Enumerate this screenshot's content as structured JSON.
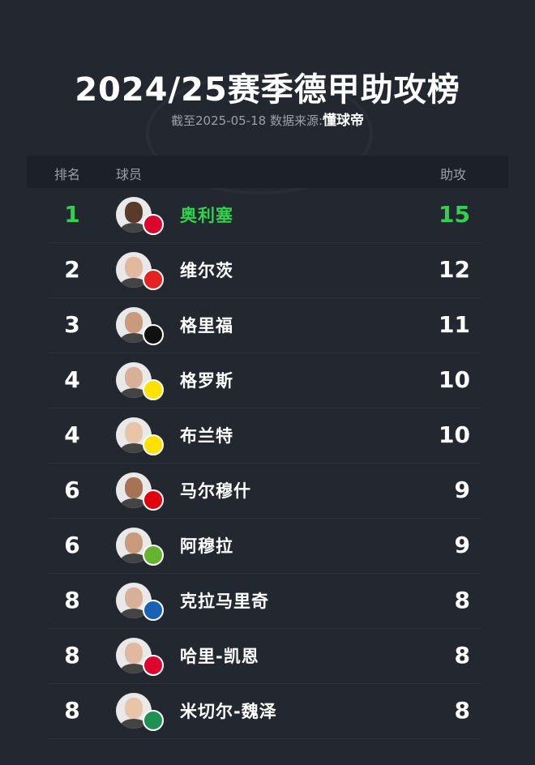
{
  "title": "2024/25赛季德甲助攻榜",
  "subtitle": {
    "text": "截至2025-05-18 数据来源:",
    "brand": "懂球帝"
  },
  "columns": {
    "rank": "排名",
    "player": "球员",
    "assists": "助攻"
  },
  "highlight_color": "#2fd24a",
  "rows": [
    {
      "rank": "1",
      "name": "奥利塞",
      "assists": "15",
      "team_color": "#dc052d",
      "skin": "#5a3a2a"
    },
    {
      "rank": "2",
      "name": "维尔茨",
      "assists": "12",
      "team_color": "#e32221",
      "skin": "#e0b9a0"
    },
    {
      "rank": "3",
      "name": "格里福",
      "assists": "11",
      "team_color": "#111111",
      "skin": "#c99a7e"
    },
    {
      "rank": "4",
      "name": "格罗斯",
      "assists": "10",
      "team_color": "#fde100",
      "skin": "#d8b09a"
    },
    {
      "rank": "4",
      "name": "布兰特",
      "assists": "10",
      "team_color": "#fde100",
      "skin": "#e8c4a8"
    },
    {
      "rank": "6",
      "name": "马尔穆什",
      "assists": "9",
      "team_color": "#e1000f",
      "skin": "#a67454"
    },
    {
      "rank": "6",
      "name": "阿穆拉",
      "assists": "9",
      "team_color": "#65b32e",
      "skin": "#c99a7e"
    },
    {
      "rank": "8",
      "name": "克拉马里奇",
      "assists": "8",
      "team_color": "#1961b5",
      "skin": "#d8b09a"
    },
    {
      "rank": "8",
      "name": "哈里-凯恩",
      "assists": "8",
      "team_color": "#dc052d",
      "skin": "#e0b9a0"
    },
    {
      "rank": "8",
      "name": "米切尔-魏泽",
      "assists": "8",
      "team_color": "#1d9053",
      "skin": "#e8c4a8"
    }
  ]
}
